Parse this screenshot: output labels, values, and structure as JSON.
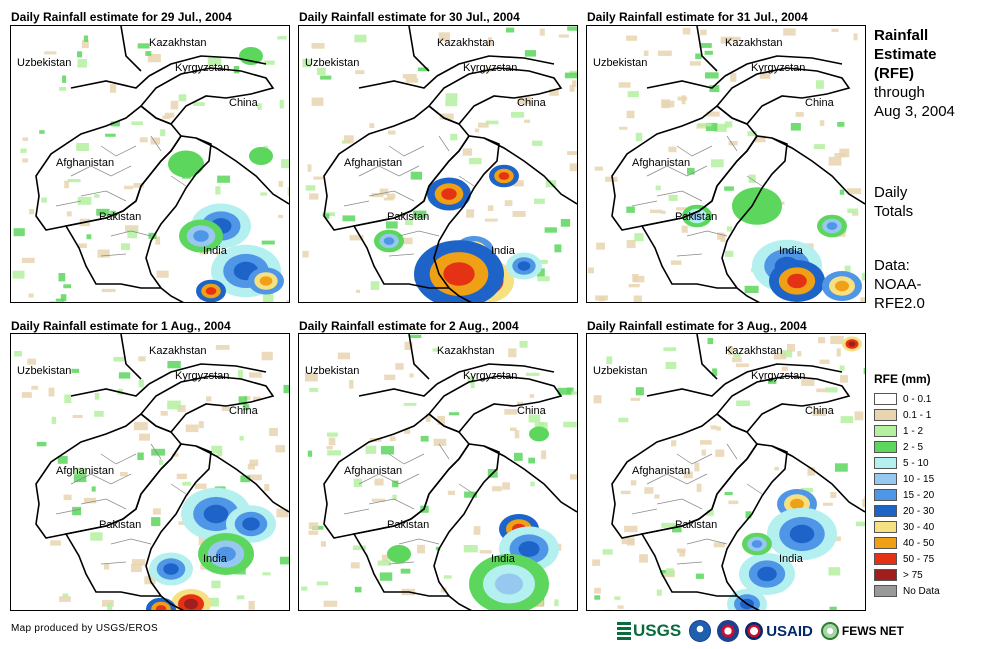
{
  "panels": [
    {
      "title": "Daily Rainfall estimate for 29 Jul., 2004"
    },
    {
      "title": "Daily Rainfall estimate for 30 Jul., 2004"
    },
    {
      "title": "Daily Rainfall estimate for 31 Jul., 2004"
    },
    {
      "title": "Daily Rainfall estimate for 1 Aug., 2004"
    },
    {
      "title": "Daily Rainfall estimate for 2 Aug., 2004"
    },
    {
      "title": "Daily Rainfall estimate for 3 Aug., 2004"
    }
  ],
  "country_labels": {
    "kazakhstan": "Kazakhstan",
    "uzbekistan": "Uzbekistan",
    "kyrgyzstan": "Kyrgyzstan",
    "china": "China",
    "afghanistan": "Afghanistan",
    "pakistan": "Pakistan",
    "india": "India"
  },
  "side": {
    "title_lines": [
      "Rainfall",
      "Estimate",
      "(RFE)"
    ],
    "through_lines": [
      "through",
      "Aug 3, 2004"
    ],
    "daily_lines": [
      "Daily",
      "Totals"
    ],
    "data_lines": [
      "Data:",
      "NOAA-",
      "RFE2.0"
    ]
  },
  "legend": {
    "title": "RFE (mm)",
    "items": [
      {
        "label": "0 - 0.1",
        "color": "#ffffff"
      },
      {
        "label": "0.1 - 1",
        "color": "#e8d5b0"
      },
      {
        "label": "1 - 2",
        "color": "#b4f0a0"
      },
      {
        "label": "2 - 5",
        "color": "#5cd65c"
      },
      {
        "label": "5 - 10",
        "color": "#b4f0f0"
      },
      {
        "label": "10 - 15",
        "color": "#96c8f0"
      },
      {
        "label": "15 - 20",
        "color": "#5096e6"
      },
      {
        "label": "20 - 30",
        "color": "#1e64c8"
      },
      {
        "label": "30 - 40",
        "color": "#f5e082"
      },
      {
        "label": "40 - 50",
        "color": "#f0a014"
      },
      {
        "label": "50 - 75",
        "color": "#e63214"
      },
      {
        "label": "> 75",
        "color": "#a01e1e"
      },
      {
        "label": "No Data",
        "color": "#999999"
      }
    ]
  },
  "credit": "Map produced by USGS/EROS",
  "logos": {
    "usgs": "USGS",
    "usaid": "USAID",
    "fews": "FEWS NET"
  }
}
